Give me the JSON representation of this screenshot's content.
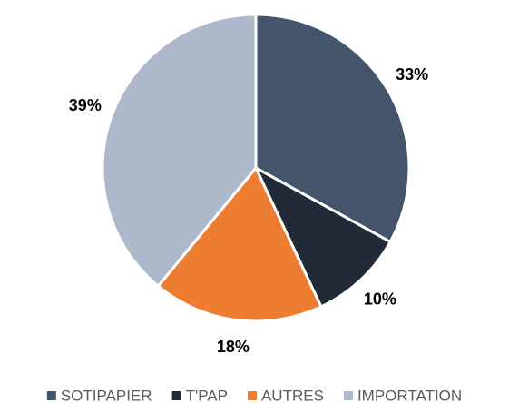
{
  "chart_data": {
    "type": "pie",
    "categories": [
      "SOTIPAPIER",
      "T'PAP",
      "AUTRES",
      "IMPORTATION"
    ],
    "values": [
      33,
      10,
      18,
      39
    ],
    "value_labels": [
      "33%",
      "10%",
      "18%",
      "39%"
    ],
    "colors": [
      "#44546a",
      "#222a35",
      "#ed7d31",
      "#adb9ca"
    ],
    "legend": "bottom"
  }
}
